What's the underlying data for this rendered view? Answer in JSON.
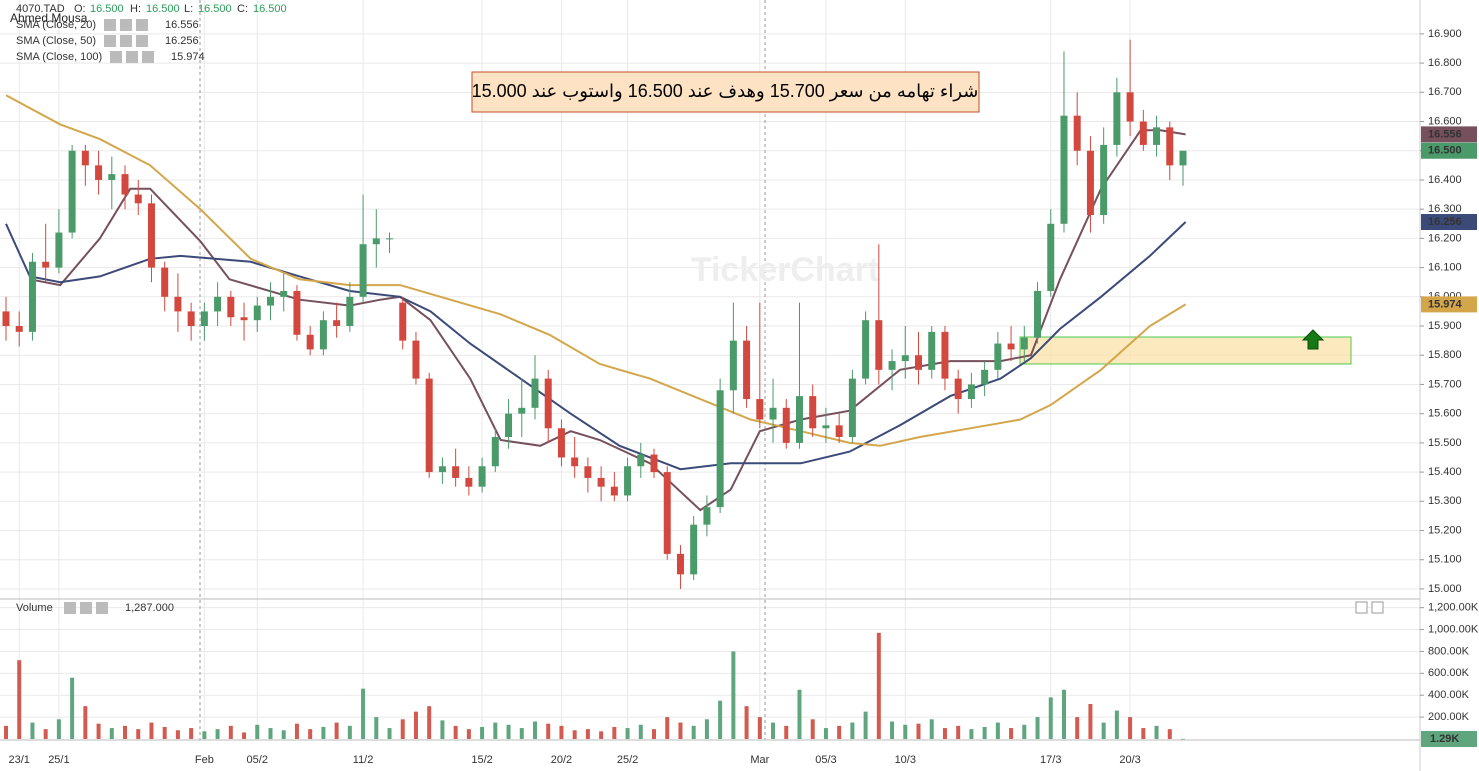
{
  "header": {
    "author": "Ahmed Mousa",
    "symbol": "4070.TAD",
    "o": "O:",
    "open": "16.500",
    "h": "H:",
    "high": "16.500",
    "l": "L:",
    "low": "16.500",
    "c": "C:",
    "close": "16.500"
  },
  "chart_data": [
    {
      "type": "candlestick",
      "watermark": "TickerChart",
      "annotation": "شراء تهامه من سعر 15.700 وهدف عند 16.500 واستوب عند 15.000",
      "categories": [
        null,
        "23/1",
        null,
        null,
        "25/1",
        null,
        null,
        null,
        null,
        null,
        null,
        null,
        null,
        null,
        null,
        "Feb",
        null,
        null,
        null,
        "05/2",
        null,
        null,
        null,
        null,
        null,
        null,
        null,
        "11/2",
        null,
        null,
        null,
        null,
        null,
        null,
        null,
        null,
        "15/2",
        null,
        null,
        null,
        null,
        null,
        "20/2",
        null,
        null,
        null,
        null,
        "25/2",
        null,
        null,
        null,
        null,
        null,
        null,
        null,
        null,
        null,
        "Mar",
        null,
        null,
        null,
        null,
        "05/3",
        null,
        null,
        null,
        null,
        null,
        "10/3",
        null,
        null,
        null,
        null,
        null,
        null,
        null,
        null,
        null,
        null,
        "17/3",
        null,
        null,
        null,
        null,
        null,
        "20/3",
        null,
        null,
        null,
        null
      ],
      "open": [
        15.95,
        15.9,
        15.88,
        16.12,
        16.1,
        16.22,
        16.5,
        16.45,
        16.4,
        16.42,
        16.35,
        16.32,
        16.1,
        16.0,
        15.95,
        15.9,
        15.95,
        16.0,
        15.93,
        15.92,
        15.97,
        16.0,
        16.02,
        15.87,
        15.82,
        15.92,
        15.9,
        16.0,
        16.18,
        16.2,
        15.98,
        15.85,
        15.72,
        15.4,
        15.42,
        15.38,
        15.35,
        15.42,
        15.52,
        15.6,
        15.62,
        15.72,
        15.55,
        15.45,
        15.42,
        15.38,
        15.35,
        15.32,
        15.42,
        15.46,
        15.4,
        15.12,
        15.05,
        15.22,
        15.28,
        15.68,
        15.85,
        15.65,
        15.58,
        15.62,
        15.5,
        15.66,
        15.55,
        15.56,
        15.52,
        15.72,
        15.92,
        15.75,
        15.78,
        15.8,
        15.75,
        15.88,
        15.72,
        15.65,
        15.7,
        15.75,
        15.84,
        15.82,
        15.86,
        16.02,
        16.25,
        16.62,
        16.5,
        16.28,
        16.52,
        16.7,
        16.6,
        16.52,
        16.58,
        16.45
      ],
      "high": [
        16.0,
        15.95,
        16.15,
        16.25,
        16.3,
        16.52,
        16.52,
        16.5,
        16.48,
        16.45,
        16.4,
        16.35,
        16.12,
        16.08,
        15.98,
        15.98,
        16.05,
        16.02,
        15.98,
        16.0,
        16.05,
        16.08,
        16.04,
        15.9,
        15.95,
        15.98,
        16.05,
        16.35,
        16.3,
        16.22,
        16.0,
        15.88,
        15.74,
        15.45,
        15.48,
        15.42,
        15.45,
        15.55,
        15.65,
        15.72,
        15.8,
        15.75,
        15.58,
        15.52,
        15.45,
        15.42,
        15.4,
        15.45,
        15.5,
        15.48,
        15.42,
        15.15,
        15.25,
        15.32,
        15.72,
        15.98,
        15.9,
        15.98,
        15.72,
        15.65,
        15.98,
        15.7,
        15.62,
        15.6,
        15.75,
        15.95,
        16.18,
        15.82,
        15.9,
        15.88,
        15.9,
        15.9,
        15.75,
        15.74,
        15.78,
        15.88,
        15.9,
        15.9,
        16.05,
        16.3,
        16.84,
        16.7,
        16.55,
        16.58,
        16.75,
        16.88,
        16.64,
        16.62,
        16.6,
        16.5
      ],
      "low": [
        15.85,
        15.83,
        15.85,
        16.05,
        16.08,
        16.2,
        16.38,
        16.35,
        16.3,
        16.3,
        16.28,
        16.05,
        15.95,
        15.88,
        15.85,
        15.85,
        15.9,
        15.9,
        15.85,
        15.88,
        15.92,
        15.95,
        15.85,
        15.8,
        15.8,
        15.86,
        15.88,
        15.98,
        16.1,
        16.15,
        15.82,
        15.7,
        15.38,
        15.36,
        15.35,
        15.32,
        15.33,
        15.4,
        15.48,
        15.52,
        15.58,
        15.5,
        15.42,
        15.38,
        15.33,
        15.3,
        15.3,
        15.3,
        15.38,
        15.38,
        15.1,
        15.0,
        15.03,
        15.18,
        15.26,
        15.6,
        15.62,
        15.55,
        15.5,
        15.48,
        15.48,
        15.52,
        15.5,
        15.5,
        15.5,
        15.7,
        15.7,
        15.68,
        15.72,
        15.7,
        15.72,
        15.68,
        15.6,
        15.62,
        15.66,
        15.72,
        15.78,
        15.78,
        15.84,
        16.0,
        16.22,
        16.45,
        16.22,
        16.25,
        16.48,
        16.55,
        16.5,
        16.48,
        16.4,
        16.38
      ],
      "close": [
        15.9,
        15.88,
        16.12,
        16.1,
        16.22,
        16.5,
        16.45,
        16.4,
        16.42,
        16.35,
        16.32,
        16.1,
        16.0,
        15.95,
        15.9,
        15.95,
        16.0,
        15.93,
        15.92,
        15.97,
        16.0,
        16.02,
        15.87,
        15.82,
        15.92,
        15.9,
        16.0,
        16.18,
        16.2,
        16.2,
        15.85,
        15.72,
        15.4,
        15.42,
        15.38,
        15.35,
        15.42,
        15.52,
        15.6,
        15.62,
        15.72,
        15.55,
        15.45,
        15.42,
        15.38,
        15.35,
        15.32,
        15.42,
        15.46,
        15.4,
        15.12,
        15.05,
        15.22,
        15.28,
        15.68,
        15.85,
        15.65,
        15.58,
        15.62,
        15.5,
        15.66,
        15.55,
        15.56,
        15.52,
        15.72,
        15.92,
        15.75,
        15.78,
        15.8,
        15.75,
        15.88,
        15.72,
        15.65,
        15.7,
        15.75,
        15.84,
        15.82,
        15.86,
        16.02,
        16.25,
        16.62,
        16.5,
        16.28,
        16.52,
        16.7,
        16.6,
        16.52,
        16.58,
        16.45,
        16.5
      ],
      "up_color": "#4a9a6a",
      "down_color": "#d2483e",
      "ylim": [
        14.969,
        17.016
      ],
      "yticks": [
        {
          "value": 15,
          "label": "15.000"
        },
        {
          "value": 15.1,
          "label": "15.100"
        },
        {
          "value": 15.2,
          "label": "15.200"
        },
        {
          "value": 15.3,
          "label": "15.300"
        },
        {
          "value": 15.4,
          "label": "15.400"
        },
        {
          "value": 15.5,
          "label": "15.500"
        },
        {
          "value": 15.6,
          "label": "15.600"
        },
        {
          "value": 15.7,
          "label": "15.700"
        },
        {
          "value": 15.8,
          "label": "15.800"
        },
        {
          "value": 15.9,
          "label": "15.900"
        },
        {
          "value": 16,
          "label": "16.000"
        },
        {
          "value": 16.1,
          "label": "16.100"
        },
        {
          "value": 16.2,
          "label": "16.200"
        },
        {
          "value": 16.3,
          "label": "16.300"
        },
        {
          "value": 16.4,
          "label": "16.400"
        },
        {
          "value": 16.5,
          "label": "16.500"
        },
        {
          "value": 16.6,
          "label": "16.600"
        },
        {
          "value": 16.7,
          "label": "16.700"
        },
        {
          "value": 16.8,
          "label": "16.800"
        },
        {
          "value": 16.9,
          "label": "16.900"
        }
      ],
      "grid": true,
      "last_price_label": "16.500",
      "lines": [
        {
          "name": "SMA (Close, 20)",
          "color": "#76505c",
          "last_label": "16.556",
          "x": [
            1.8,
            4.1,
            7.1,
            9.4,
            10.9,
            14.7,
            16.9,
            22.2,
            26.0,
            28.3,
            29.8,
            32.1,
            35.1,
            37.4,
            40.4,
            42.7,
            44.9,
            48.7,
            52.5,
            54.8,
            57.0,
            60.1,
            63.8,
            67.6,
            71.4,
            75.2,
            77.5,
            79.7,
            82.8,
            85.8,
            87.3,
            89.2
          ],
          "values": [
            16.06,
            16.04,
            16.2,
            16.37,
            16.37,
            16.19,
            16.06,
            15.99,
            15.97,
            15.99,
            16.0,
            15.92,
            15.72,
            15.51,
            15.49,
            15.54,
            15.51,
            15.43,
            15.27,
            15.34,
            15.54,
            15.58,
            15.61,
            15.75,
            15.78,
            15.78,
            15.8,
            16.06,
            16.37,
            16.57,
            16.57,
            16.556
          ]
        },
        {
          "name": "SMA (Close, 50)",
          "color": "#3b4a78",
          "last_label": "16.256",
          "x": [
            0,
            1.8,
            4.1,
            7.1,
            10.9,
            13.2,
            18.5,
            22.2,
            26.0,
            29.8,
            32.1,
            35.1,
            38.9,
            42.7,
            46.4,
            51.0,
            54.8,
            57.0,
            60.1,
            63.8,
            67.6,
            71.4,
            75.2,
            77.5,
            79.7,
            82.8,
            86.5,
            89.2
          ],
          "values": [
            16.25,
            16.07,
            16.05,
            16.07,
            16.13,
            16.14,
            16.12,
            16.07,
            16.02,
            16.0,
            15.95,
            15.84,
            15.72,
            15.6,
            15.49,
            15.41,
            15.43,
            15.43,
            15.43,
            15.47,
            15.56,
            15.66,
            15.72,
            15.79,
            15.89,
            16.0,
            16.14,
            16.256
          ]
        },
        {
          "name": "SMA (Close, 100)",
          "color": "#d4a64a",
          "last_label": "15.974",
          "x": [
            0,
            4.1,
            7.1,
            10.9,
            14.7,
            18.5,
            22.2,
            26.0,
            29.8,
            33.6,
            37.4,
            41.1,
            44.9,
            48.7,
            52.5,
            56.3,
            60.1,
            63.8,
            66.1,
            69.1,
            72.9,
            76.7,
            79.0,
            82.8,
            86.5,
            89.2
          ],
          "values": [
            16.69,
            16.59,
            16.54,
            16.45,
            16.3,
            16.13,
            16.06,
            16.04,
            16.04,
            15.99,
            15.94,
            15.87,
            15.77,
            15.72,
            15.65,
            15.58,
            15.54,
            15.5,
            15.49,
            15.52,
            15.55,
            15.58,
            15.63,
            15.75,
            15.9,
            15.974
          ]
        }
      ]
    },
    {
      "type": "bar",
      "title": "Volume",
      "last_value_label": "1,287.000",
      "last_label": "1.29K",
      "up_color": "#5fa57e",
      "down_color": "#d25a50",
      "values": [
        120000,
        720000,
        150000,
        90000,
        180000,
        560000,
        300000,
        140000,
        100000,
        120000,
        90000,
        150000,
        110000,
        80000,
        100000,
        70000,
        90000,
        120000,
        60000,
        130000,
        100000,
        80000,
        140000,
        90000,
        110000,
        150000,
        120000,
        460000,
        200000,
        100000,
        180000,
        250000,
        300000,
        170000,
        120000,
        90000,
        110000,
        150000,
        130000,
        100000,
        160000,
        140000,
        120000,
        80000,
        90000,
        70000,
        110000,
        100000,
        130000,
        90000,
        200000,
        150000,
        120000,
        180000,
        350000,
        800000,
        300000,
        200000,
        150000,
        120000,
        450000,
        180000,
        100000,
        120000,
        150000,
        250000,
        970000,
        160000,
        130000,
        140000,
        180000,
        100000,
        120000,
        90000,
        110000,
        150000,
        100000,
        130000,
        200000,
        380000,
        450000,
        200000,
        320000,
        150000,
        260000,
        200000,
        100000,
        120000,
        90000,
        1287
      ],
      "ylim": [
        0,
        1270000
      ],
      "yticks": [
        {
          "value": 200000,
          "label": "200.00K"
        },
        {
          "value": 400000,
          "label": "400.00K"
        },
        {
          "value": 600000,
          "label": "600.00K"
        },
        {
          "value": 800000,
          "label": "800.00K"
        },
        {
          "value": 1000000,
          "label": "1,000.00K"
        },
        {
          "value": 1200000,
          "label": "1,200.00K"
        }
      ],
      "grid": true
    }
  ]
}
